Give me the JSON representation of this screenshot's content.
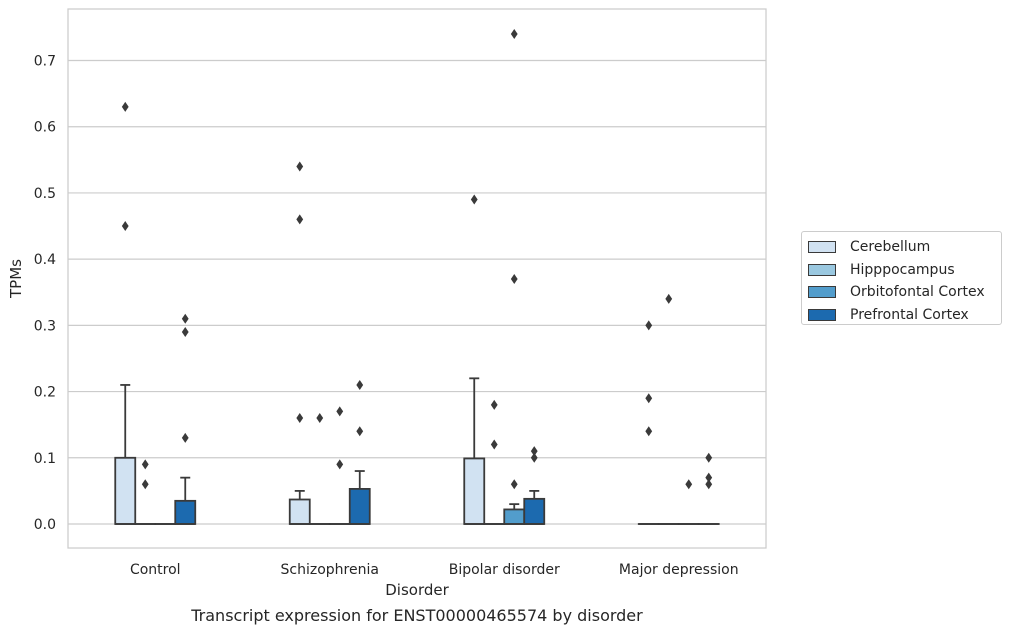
{
  "chart_data": {
    "type": "box",
    "title": "",
    "xlabel": "Disorder",
    "ylabel": "TPMs",
    "caption": "Transcript expression for ENST00000465574 by disorder",
    "categories": [
      "Control",
      "Schizophrenia",
      "Bipolar disorder",
      "Major depression"
    ],
    "ylim": [
      -0.036,
      0.78
    ],
    "yticks": [
      0.0,
      0.1,
      0.2,
      0.3,
      0.4,
      0.5,
      0.6,
      0.7
    ],
    "ytick_labels": [
      "0.0",
      "0.1",
      "0.2",
      "0.3",
      "0.4",
      "0.5",
      "0.6",
      "0.7"
    ],
    "grid": true,
    "legend_position": "right",
    "series": [
      {
        "name": "Cerebellum",
        "color": "#d1e2f2",
        "boxes": [
          {
            "q1": 0.0,
            "median": 0.0,
            "q3": 0.1,
            "whisker_low": 0.0,
            "whisker_high": 0.21,
            "outliers": [
              0.45,
              0.63
            ]
          },
          {
            "q1": 0.0,
            "median": 0.0,
            "q3": 0.037,
            "whisker_low": 0.0,
            "whisker_high": 0.05,
            "outliers": [
              0.16,
              0.46,
              0.54
            ]
          },
          {
            "q1": 0.0,
            "median": 0.0,
            "q3": 0.099,
            "whisker_low": 0.0,
            "whisker_high": 0.22,
            "outliers": [
              0.49
            ]
          },
          {
            "q1": 0.0,
            "median": 0.0,
            "q3": 0.0,
            "whisker_low": 0.0,
            "whisker_high": 0.0,
            "outliers": [
              0.14,
              0.19,
              0.3
            ]
          }
        ]
      },
      {
        "name": "Hipppocampus",
        "color": "#9ac8e0",
        "boxes": [
          {
            "q1": 0.0,
            "median": 0.0,
            "q3": 0.0,
            "whisker_low": 0.0,
            "whisker_high": 0.0,
            "outliers": [
              0.06,
              0.09
            ]
          },
          {
            "q1": 0.0,
            "median": 0.0,
            "q3": 0.0,
            "whisker_low": 0.0,
            "whisker_high": 0.0,
            "outliers": [
              0.16
            ]
          },
          {
            "q1": 0.0,
            "median": 0.0,
            "q3": 0.0,
            "whisker_low": 0.0,
            "whisker_high": 0.0,
            "outliers": [
              0.12,
              0.18
            ]
          },
          {
            "q1": 0.0,
            "median": 0.0,
            "q3": 0.0,
            "whisker_low": 0.0,
            "whisker_high": 0.0,
            "outliers": [
              0.34
            ]
          }
        ]
      },
      {
        "name": "Orbitofontal Cortex",
        "color": "#529dcc",
        "boxes": [
          {
            "q1": 0.0,
            "median": 0.0,
            "q3": 0.0,
            "whisker_low": 0.0,
            "whisker_high": 0.0,
            "outliers": []
          },
          {
            "q1": 0.0,
            "median": 0.0,
            "q3": 0.0,
            "whisker_low": 0.0,
            "whisker_high": 0.0,
            "outliers": [
              0.09,
              0.17
            ]
          },
          {
            "q1": 0.0,
            "median": 0.0,
            "q3": 0.022,
            "whisker_low": 0.0,
            "whisker_high": 0.03,
            "outliers": [
              0.06,
              0.37,
              0.74
            ]
          },
          {
            "q1": 0.0,
            "median": 0.0,
            "q3": 0.0,
            "whisker_low": 0.0,
            "whisker_high": 0.0,
            "outliers": [
              0.06
            ]
          }
        ]
      },
      {
        "name": "Prefrontal Cortex",
        "color": "#1c6aaf",
        "boxes": [
          {
            "q1": 0.0,
            "median": 0.0,
            "q3": 0.035,
            "whisker_low": 0.0,
            "whisker_high": 0.07,
            "outliers": [
              0.13,
              0.29,
              0.31
            ]
          },
          {
            "q1": 0.0,
            "median": 0.0,
            "q3": 0.053,
            "whisker_low": 0.0,
            "whisker_high": 0.08,
            "outliers": [
              0.14,
              0.21
            ]
          },
          {
            "q1": 0.0,
            "median": 0.0,
            "q3": 0.038,
            "whisker_low": 0.0,
            "whisker_high": 0.05,
            "outliers": [
              0.1,
              0.11
            ]
          },
          {
            "q1": 0.0,
            "median": 0.0,
            "q3": 0.0,
            "whisker_low": 0.0,
            "whisker_high": 0.0,
            "outliers": [
              0.06,
              0.07,
              0.1
            ]
          }
        ]
      }
    ]
  }
}
